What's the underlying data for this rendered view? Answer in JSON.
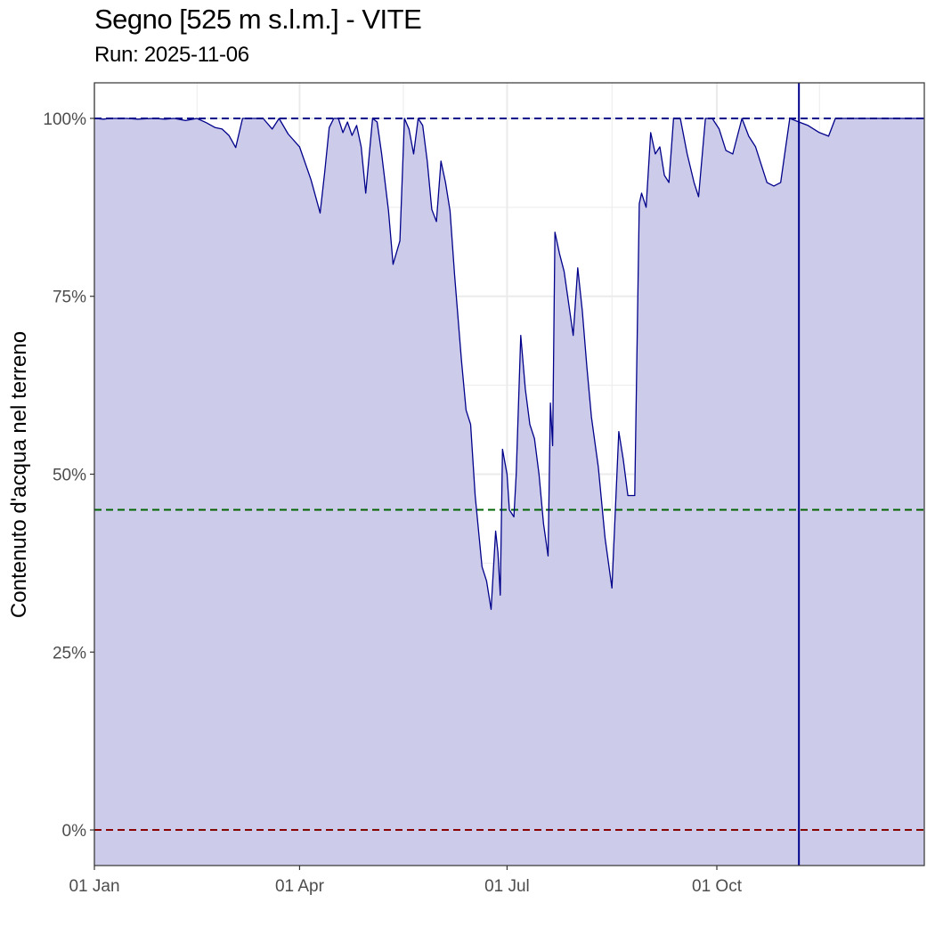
{
  "chart_data": {
    "type": "area",
    "title": "Segno [525 m s.l.m.] - VITE",
    "subtitle": "Run: 2025-11-06",
    "ylabel": "Contenuto d'acqua nel terreno",
    "xlabel": "",
    "x_range": [
      "2025-01-01",
      "2025-12-31"
    ],
    "ylim": [
      -0.05,
      1.05
    ],
    "y_ticks": [
      0,
      0.25,
      0.5,
      0.75,
      1.0
    ],
    "y_tick_labels": [
      "0%",
      "25%",
      "50%",
      "75%",
      "100%"
    ],
    "x_ticks": [
      "2025-01-01",
      "2025-04-01",
      "2025-07-01",
      "2025-10-01"
    ],
    "x_tick_labels": [
      "01 Jan",
      "01 Apr",
      "01 Jul",
      "01 Oct"
    ],
    "grid": true,
    "colors": {
      "series_line": "#00008b",
      "series_fill": "#ccccea",
      "line_100": "#00008b",
      "line_45": "#006400",
      "line_0": "#8b0000",
      "today_line": "#00008b"
    },
    "reference_lines": [
      {
        "y": 1.0,
        "style": "dashed",
        "color": "#00008b"
      },
      {
        "y": 0.45,
        "style": "dashed",
        "color": "#006400"
      },
      {
        "y": 0.0,
        "style": "dashed",
        "color": "#8b0000"
      }
    ],
    "vline": {
      "x": "2025-11-06",
      "color": "#00008b"
    },
    "series": [
      {
        "x": [
          "2025-01-01",
          "2025-01-05",
          "2025-01-08",
          "2025-01-15",
          "2025-01-20",
          "2025-01-27",
          "2025-02-01",
          "2025-02-05",
          "2025-02-10",
          "2025-02-15",
          "2025-02-19",
          "2025-02-23",
          "2025-02-26",
          "2025-03-01",
          "2025-03-04",
          "2025-03-07",
          "2025-03-09",
          "2025-03-13",
          "2025-03-16",
          "2025-03-20",
          "2025-03-23",
          "2025-03-27",
          "2025-04-01",
          "2025-04-06",
          "2025-04-10",
          "2025-04-12",
          "2025-04-14",
          "2025-04-16",
          "2025-04-18",
          "2025-04-20",
          "2025-04-22",
          "2025-04-24",
          "2025-04-26",
          "2025-04-28",
          "2025-04-30",
          "2025-05-03",
          "2025-05-05",
          "2025-05-07",
          "2025-05-10",
          "2025-05-12",
          "2025-05-15",
          "2025-05-17",
          "2025-05-19",
          "2025-05-21",
          "2025-05-23",
          "2025-05-25",
          "2025-05-27",
          "2025-05-29",
          "2025-05-31",
          "2025-06-02",
          "2025-06-04",
          "2025-06-06",
          "2025-06-08",
          "2025-06-11",
          "2025-06-13",
          "2025-06-15",
          "2025-06-17",
          "2025-06-20",
          "2025-06-22",
          "2025-06-24",
          "2025-06-26",
          "2025-06-27",
          "2025-06-28",
          "2025-06-29",
          "2025-07-01",
          "2025-07-02",
          "2025-07-04",
          "2025-07-05",
          "2025-07-07",
          "2025-07-09",
          "2025-07-11",
          "2025-07-13",
          "2025-07-15",
          "2025-07-17",
          "2025-07-19",
          "2025-07-20",
          "2025-07-21",
          "2025-07-22",
          "2025-07-24",
          "2025-07-26",
          "2025-07-28",
          "2025-07-30",
          "2025-08-01",
          "2025-08-03",
          "2025-08-05",
          "2025-08-07",
          "2025-08-10",
          "2025-08-13",
          "2025-08-16",
          "2025-08-19",
          "2025-08-21",
          "2025-08-23",
          "2025-08-26",
          "2025-08-28",
          "2025-08-29",
          "2025-08-31",
          "2025-09-02",
          "2025-09-04",
          "2025-09-06",
          "2025-09-08",
          "2025-09-10",
          "2025-09-12",
          "2025-09-15",
          "2025-09-18",
          "2025-09-21",
          "2025-09-23",
          "2025-09-26",
          "2025-09-29",
          "2025-10-02",
          "2025-10-05",
          "2025-10-08",
          "2025-10-12",
          "2025-10-15",
          "2025-10-18",
          "2025-10-20",
          "2025-10-23",
          "2025-10-26",
          "2025-10-29",
          "2025-11-02",
          "2025-11-06",
          "2025-11-10",
          "2025-11-15",
          "2025-11-19",
          "2025-11-22",
          "2025-11-27",
          "2025-12-31"
        ],
        "y": [
          1.0,
          0.999,
          1.0,
          1.0,
          0.999,
          1.0,
          0.999,
          1.0,
          0.997,
          1.0,
          0.994,
          0.987,
          0.985,
          0.976,
          0.959,
          1.0,
          1.0,
          1.0,
          1.0,
          0.985,
          1.0,
          0.978,
          0.96,
          0.914,
          0.867,
          0.924,
          0.987,
          1.0,
          1.0,
          0.98,
          0.995,
          0.976,
          0.99,
          0.96,
          0.895,
          1.0,
          0.995,
          0.95,
          0.87,
          0.795,
          0.828,
          1.0,
          0.985,
          0.95,
          1.0,
          0.99,
          0.94,
          0.872,
          0.855,
          0.94,
          0.91,
          0.87,
          0.78,
          0.66,
          0.59,
          0.57,
          0.47,
          0.37,
          0.35,
          0.31,
          0.42,
          0.39,
          0.33,
          0.535,
          0.5,
          0.45,
          0.44,
          0.5,
          0.695,
          0.62,
          0.57,
          0.55,
          0.5,
          0.43,
          0.385,
          0.6,
          0.54,
          0.84,
          0.81,
          0.785,
          0.74,
          0.695,
          0.79,
          0.73,
          0.65,
          0.58,
          0.51,
          0.41,
          0.34,
          0.56,
          0.52,
          0.47,
          0.47,
          0.88,
          0.895,
          0.875,
          0.98,
          0.95,
          0.96,
          0.92,
          0.91,
          1.0,
          1.0,
          0.95,
          0.91,
          0.89,
          1.0,
          1.0,
          0.985,
          0.955,
          0.95,
          1.0,
          0.975,
          0.96,
          0.94,
          0.91,
          0.905,
          0.91,
          1.0,
          0.995,
          0.99,
          0.98,
          0.975,
          1.0,
          1.0,
          1.0
        ]
      }
    ]
  }
}
